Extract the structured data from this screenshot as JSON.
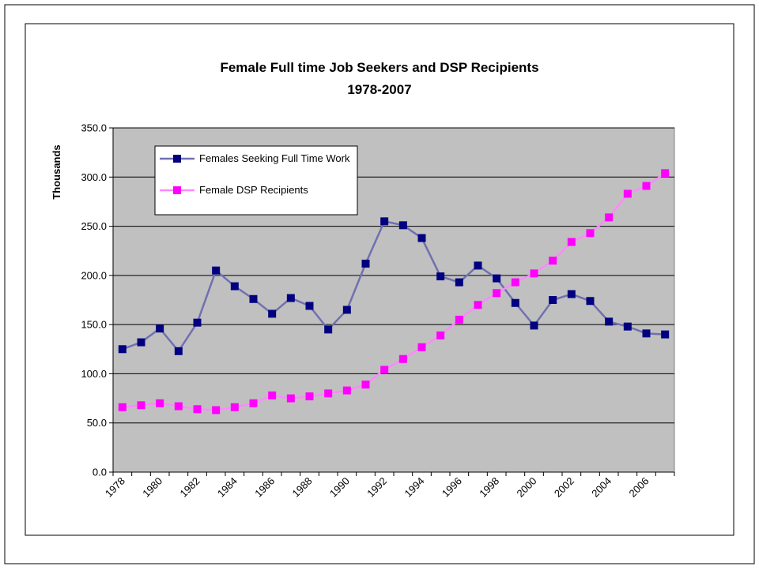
{
  "chart_data": {
    "type": "line",
    "title": "Female Full time Job Seekers and DSP Recipients",
    "subtitle": "1978-2007",
    "y_label": "Thousands",
    "categories": [
      "1978",
      null,
      "1980",
      null,
      "1982",
      null,
      "1984",
      null,
      "1986",
      null,
      "1988",
      null,
      "1990",
      null,
      "1992",
      null,
      "1994",
      null,
      "1996",
      null,
      "1998",
      null,
      "2000",
      null,
      "2002",
      null,
      "2004",
      null,
      "2006",
      null
    ],
    "series": [
      {
        "name": "Females Seeking Full Time Work",
        "color": "#000080",
        "line_color": "#7070b0",
        "values": [
          125,
          132,
          146,
          123,
          152,
          205,
          189,
          176,
          161,
          177,
          169,
          145,
          165,
          212,
          255,
          251,
          238,
          199,
          193,
          210,
          197,
          172,
          149,
          175,
          181,
          174,
          153,
          148,
          141,
          140
        ]
      },
      {
        "name": "Female DSP Recipients",
        "color": "#ff00ff",
        "line_color": "#ff88ff",
        "values": [
          66,
          68,
          70,
          67,
          64,
          63,
          66,
          70,
          78,
          75,
          77,
          80,
          83,
          89,
          104,
          115,
          127,
          139,
          155,
          170,
          182,
          193,
          202,
          215,
          234,
          243,
          259,
          283,
          291,
          304
        ]
      }
    ],
    "ylim": [
      0,
      350
    ],
    "yticks": [
      {
        "value": 0,
        "label": "0.0"
      },
      {
        "value": 50,
        "label": "50.0"
      },
      {
        "value": 100,
        "label": "100.0"
      },
      {
        "value": 150,
        "label": "150.0"
      },
      {
        "value": 200,
        "label": "200.0"
      },
      {
        "value": 250,
        "label": "250.0"
      },
      {
        "value": 300,
        "label": "300.0"
      },
      {
        "value": 350,
        "label": "350.0"
      }
    ],
    "grid": true,
    "plot_background": "#c0c0c0",
    "legend": "upper left"
  }
}
